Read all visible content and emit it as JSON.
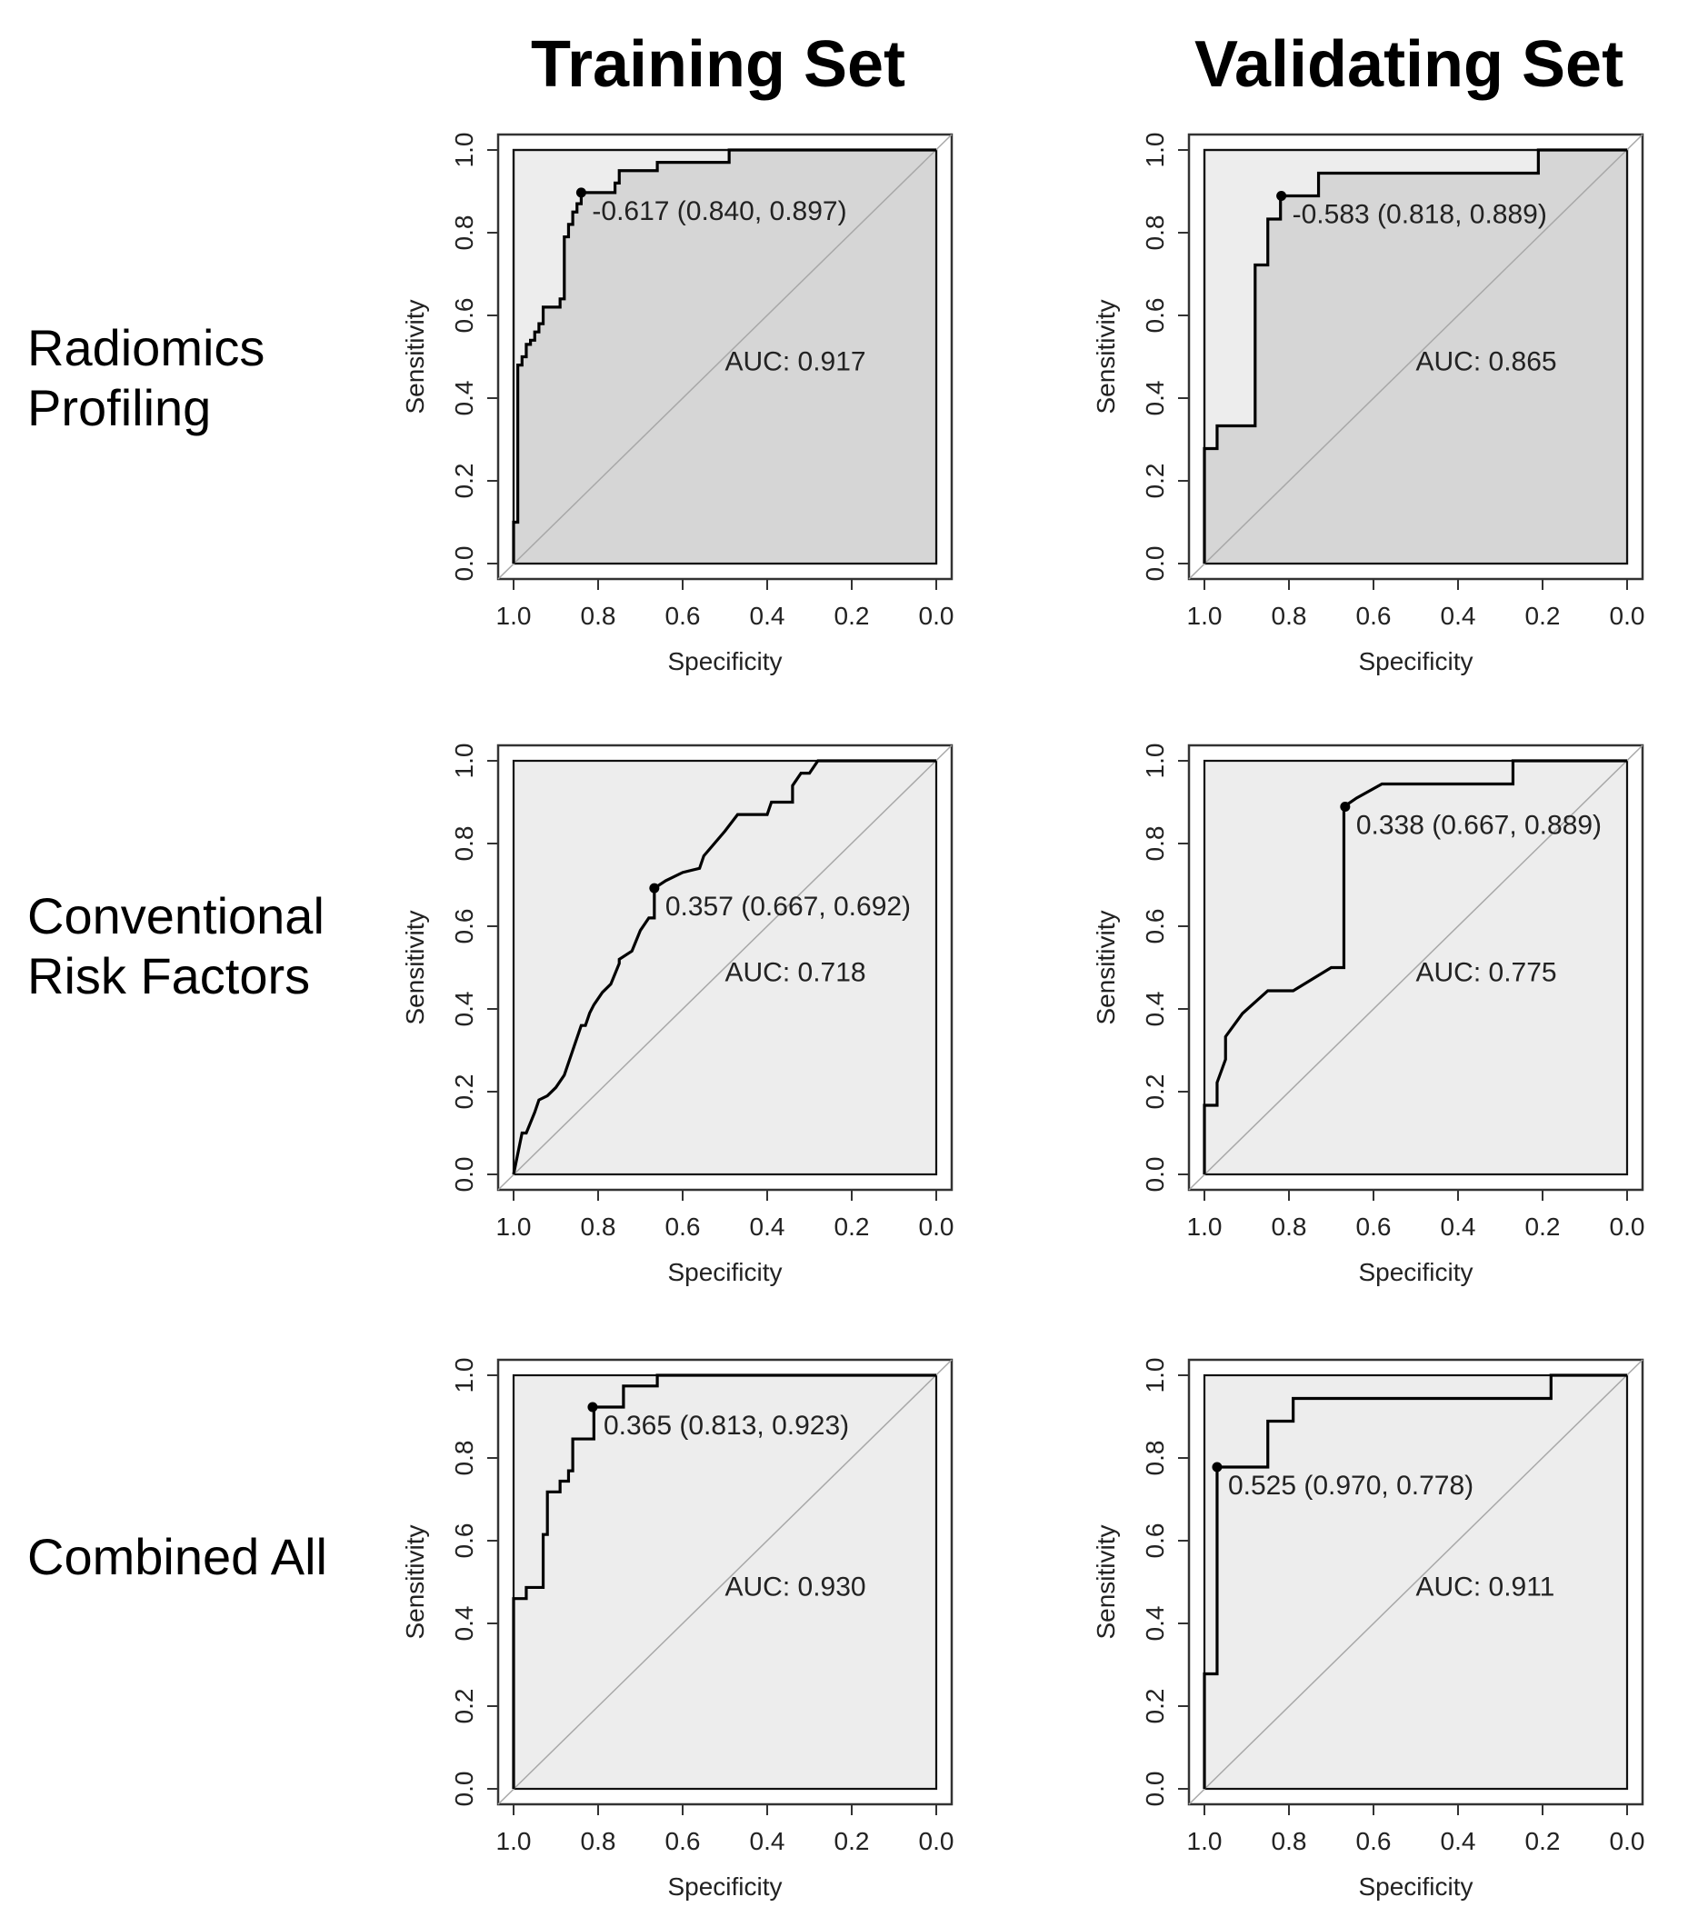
{
  "column_titles": [
    "Training Set",
    "Validating Set"
  ],
  "row_labels": [
    [
      "Radiomics",
      "Profiling"
    ],
    [
      "Conventional",
      "Risk Factors"
    ],
    [
      "Combined All"
    ]
  ],
  "chart_data": [
    {
      "type": "line",
      "title": "Radiomics Profiling - Training Set",
      "xlabel": "Specificity",
      "ylabel": "Sensitivity",
      "xlim": [
        1.0,
        0.0
      ],
      "ylim": [
        0.0,
        1.0
      ],
      "x_ticks": [
        "1.0",
        "0.8",
        "0.6",
        "0.4",
        "0.2",
        "0.0"
      ],
      "y_ticks": [
        "0.0",
        "0.2",
        "0.4",
        "0.6",
        "0.8",
        "1.0"
      ],
      "auc_label": "AUC: 0.917",
      "threshold_label": "-0.617 (0.840, 0.897)",
      "threshold_point": [
        0.84,
        0.897
      ],
      "roc_x": [
        1.0,
        1.0,
        0.99,
        0.99,
        0.98,
        0.98,
        0.97,
        0.97,
        0.96,
        0.96,
        0.95,
        0.95,
        0.94,
        0.94,
        0.93,
        0.93,
        0.89,
        0.89,
        0.88,
        0.88,
        0.87,
        0.87,
        0.86,
        0.86,
        0.85,
        0.85,
        0.84,
        0.84,
        0.76,
        0.76,
        0.75,
        0.75,
        0.66,
        0.66,
        0.49,
        0.49,
        0.0
      ],
      "roc_y": [
        0.0,
        0.1,
        0.1,
        0.48,
        0.48,
        0.5,
        0.5,
        0.53,
        0.53,
        0.54,
        0.54,
        0.56,
        0.56,
        0.58,
        0.58,
        0.62,
        0.62,
        0.64,
        0.64,
        0.79,
        0.79,
        0.82,
        0.82,
        0.85,
        0.85,
        0.87,
        0.87,
        0.897,
        0.897,
        0.92,
        0.92,
        0.95,
        0.95,
        0.97,
        0.97,
        1.0,
        1.0
      ],
      "fill_auc": true
    },
    {
      "type": "line",
      "title": "Radiomics Profiling - Validating Set",
      "xlabel": "Specificity",
      "ylabel": "Sensitivity",
      "xlim": [
        1.0,
        0.0
      ],
      "ylim": [
        0.0,
        1.0
      ],
      "x_ticks": [
        "1.0",
        "0.8",
        "0.6",
        "0.4",
        "0.2",
        "0.0"
      ],
      "y_ticks": [
        "0.0",
        "0.2",
        "0.4",
        "0.6",
        "0.8",
        "1.0"
      ],
      "auc_label": "AUC: 0.865",
      "threshold_label": "-0.583 (0.818, 0.889)",
      "threshold_point": [
        0.818,
        0.889
      ],
      "roc_x": [
        1.0,
        1.0,
        0.97,
        0.97,
        0.88,
        0.88,
        0.85,
        0.85,
        0.82,
        0.82,
        0.73,
        0.73,
        0.21,
        0.21,
        0.0
      ],
      "roc_y": [
        0.0,
        0.278,
        0.278,
        0.333,
        0.333,
        0.722,
        0.722,
        0.833,
        0.833,
        0.889,
        0.889,
        0.944,
        0.944,
        1.0,
        1.0
      ],
      "fill_auc": true
    },
    {
      "type": "line",
      "title": "Conventional Risk Factors - Training Set",
      "xlabel": "Specificity",
      "ylabel": "Sensitivity",
      "xlim": [
        1.0,
        0.0
      ],
      "ylim": [
        0.0,
        1.0
      ],
      "x_ticks": [
        "1.0",
        "0.8",
        "0.6",
        "0.4",
        "0.2",
        "0.0"
      ],
      "y_ticks": [
        "0.0",
        "0.2",
        "0.4",
        "0.6",
        "0.8",
        "1.0"
      ],
      "auc_label": "AUC: 0.718",
      "threshold_label": "0.357 (0.667, 0.692)",
      "threshold_point": [
        0.667,
        0.692
      ],
      "roc_x": [
        1.0,
        0.99,
        0.98,
        0.97,
        0.95,
        0.94,
        0.92,
        0.9,
        0.88,
        0.86,
        0.84,
        0.83,
        0.82,
        0.81,
        0.79,
        0.77,
        0.75,
        0.75,
        0.72,
        0.7,
        0.68,
        0.667,
        0.667,
        0.64,
        0.6,
        0.56,
        0.55,
        0.5,
        0.47,
        0.4,
        0.39,
        0.34,
        0.34,
        0.32,
        0.3,
        0.28,
        0.0
      ],
      "roc_y": [
        0.0,
        0.05,
        0.1,
        0.1,
        0.15,
        0.18,
        0.19,
        0.21,
        0.24,
        0.3,
        0.36,
        0.36,
        0.39,
        0.41,
        0.44,
        0.46,
        0.51,
        0.52,
        0.54,
        0.59,
        0.62,
        0.62,
        0.692,
        0.71,
        0.73,
        0.74,
        0.77,
        0.83,
        0.87,
        0.87,
        0.9,
        0.9,
        0.94,
        0.97,
        0.97,
        1.0,
        1.0
      ],
      "fill_auc": false
    },
    {
      "type": "line",
      "title": "Conventional Risk Factors - Validating Set",
      "xlabel": "Specificity",
      "ylabel": "Sensitivity",
      "xlim": [
        1.0,
        0.0
      ],
      "ylim": [
        0.0,
        1.0
      ],
      "x_ticks": [
        "1.0",
        "0.8",
        "0.6",
        "0.4",
        "0.2",
        "0.0"
      ],
      "y_ticks": [
        "0.0",
        "0.2",
        "0.4",
        "0.6",
        "0.8",
        "1.0"
      ],
      "auc_label": "AUC: 0.775",
      "threshold_label": "0.338 (0.667, 0.889)",
      "threshold_point": [
        0.667,
        0.889
      ],
      "roc_x": [
        1.0,
        1.0,
        0.97,
        0.97,
        0.95,
        0.95,
        0.91,
        0.85,
        0.79,
        0.7,
        0.7,
        0.67,
        0.67,
        0.64,
        0.58,
        0.27,
        0.27,
        0.0
      ],
      "roc_y": [
        0.0,
        0.167,
        0.167,
        0.222,
        0.278,
        0.333,
        0.389,
        0.444,
        0.444,
        0.5,
        0.5,
        0.5,
        0.889,
        0.91,
        0.944,
        0.944,
        1.0,
        1.0
      ],
      "fill_auc": false
    },
    {
      "type": "line",
      "title": "Combined All - Training Set",
      "xlabel": "Specificity",
      "ylabel": "Sensitivity",
      "xlim": [
        1.0,
        0.0
      ],
      "ylim": [
        0.0,
        1.0
      ],
      "x_ticks": [
        "1.0",
        "0.8",
        "0.6",
        "0.4",
        "0.2",
        "0.0"
      ],
      "y_ticks": [
        "0.0",
        "0.2",
        "0.4",
        "0.6",
        "0.8",
        "1.0"
      ],
      "auc_label": "AUC: 0.930",
      "threshold_label": "0.365 (0.813, 0.923)",
      "threshold_point": [
        0.813,
        0.923
      ],
      "roc_x": [
        1.0,
        1.0,
        0.97,
        0.97,
        0.93,
        0.93,
        0.92,
        0.92,
        0.89,
        0.89,
        0.87,
        0.87,
        0.86,
        0.86,
        0.81,
        0.81,
        0.74,
        0.74,
        0.66,
        0.66,
        0.0
      ],
      "roc_y": [
        0.0,
        0.46,
        0.46,
        0.487,
        0.487,
        0.615,
        0.615,
        0.718,
        0.718,
        0.744,
        0.744,
        0.769,
        0.769,
        0.846,
        0.846,
        0.923,
        0.923,
        0.974,
        0.974,
        1.0,
        1.0
      ],
      "fill_auc": false
    },
    {
      "type": "line",
      "title": "Combined All - Validating Set",
      "xlabel": "Specificity",
      "ylabel": "Sensitivity",
      "xlim": [
        1.0,
        0.0
      ],
      "ylim": [
        0.0,
        1.0
      ],
      "x_ticks": [
        "1.0",
        "0.8",
        "0.6",
        "0.4",
        "0.2",
        "0.0"
      ],
      "y_ticks": [
        "0.0",
        "0.2",
        "0.4",
        "0.6",
        "0.8",
        "1.0"
      ],
      "auc_label": "AUC: 0.911",
      "threshold_label": "0.525 (0.970, 0.778)",
      "threshold_point": [
        0.97,
        0.778
      ],
      "roc_x": [
        1.0,
        1.0,
        0.97,
        0.97,
        0.85,
        0.85,
        0.79,
        0.79,
        0.18,
        0.18,
        0.0
      ],
      "roc_y": [
        0.0,
        0.278,
        0.278,
        0.778,
        0.778,
        0.889,
        0.889,
        0.944,
        0.944,
        1.0,
        1.0
      ],
      "fill_auc": false
    }
  ]
}
